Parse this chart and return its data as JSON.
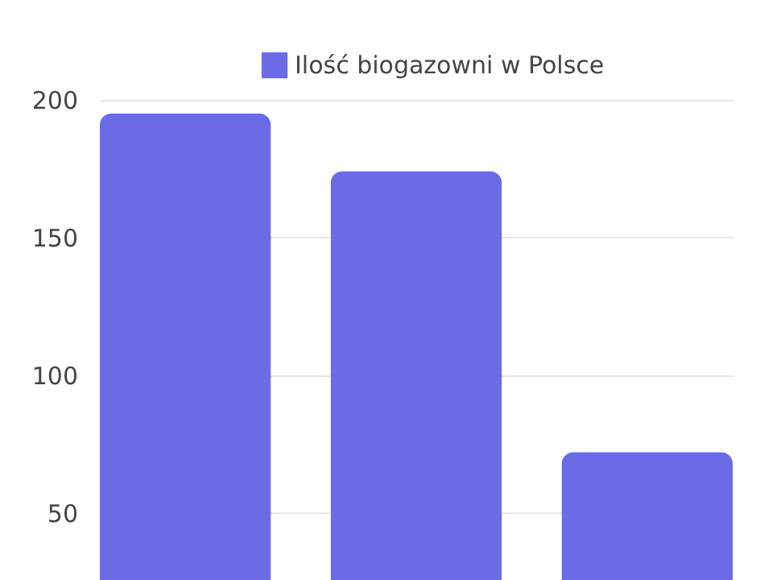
{
  "chart_data": {
    "type": "bar",
    "categories": [
      null,
      null,
      null
    ],
    "series": [
      {
        "name": "Ilość biogazowni w Polsce",
        "color": "#6b6be6",
        "values": [
          195,
          174,
          72
        ]
      }
    ],
    "ylim": [
      25,
      200
    ],
    "yticks": [
      50,
      100,
      150,
      200
    ],
    "grid": "y",
    "legend": "top",
    "tick_labels": "y"
  }
}
